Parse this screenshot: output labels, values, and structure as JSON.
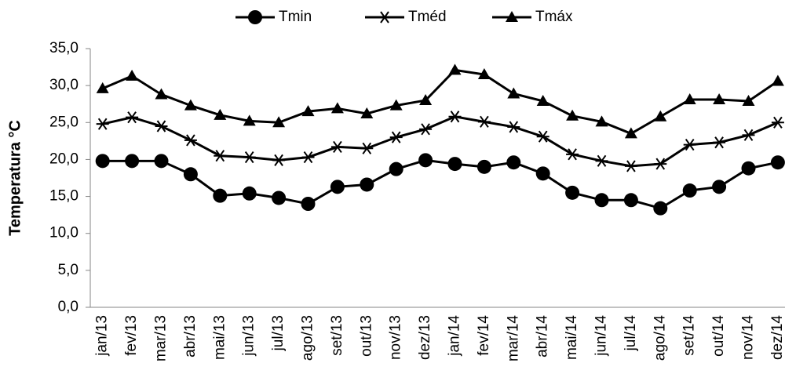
{
  "chart_data": {
    "type": "line",
    "y_label": "Temperatura °C",
    "categories": [
      "jan/13",
      "fev/13",
      "mar/13",
      "abr/13",
      "mai/13",
      "jun/13",
      "jul/13",
      "ago/13",
      "set/13",
      "out/13",
      "nov/13",
      "dez/13",
      "jan/14",
      "fev/14",
      "mar/14",
      "abr/14",
      "mai/14",
      "jun/14",
      "jul/14",
      "ago/14",
      "set/14",
      "out/14",
      "nov/14",
      "dez/14"
    ],
    "series": [
      {
        "name": "Tmin",
        "color": "#000000",
        "marker": "circle",
        "values": [
          19.8,
          19.8,
          19.8,
          18.0,
          15.1,
          15.4,
          14.8,
          14.0,
          16.3,
          16.6,
          18.7,
          19.9,
          19.4,
          19.0,
          19.6,
          18.1,
          15.5,
          14.5,
          14.5,
          13.4,
          15.8,
          16.3,
          18.8,
          19.6
        ]
      },
      {
        "name": "Tméd",
        "color": "#000000",
        "marker": "star",
        "values": [
          24.8,
          25.7,
          24.5,
          22.6,
          20.5,
          20.3,
          19.9,
          20.3,
          21.7,
          21.5,
          23.0,
          24.1,
          25.8,
          25.1,
          24.4,
          23.1,
          20.7,
          19.8,
          19.1,
          19.4,
          22.0,
          22.3,
          23.3,
          25.0
        ]
      },
      {
        "name": "Tmáx",
        "color": "#000000",
        "marker": "triangle",
        "values": [
          29.6,
          31.3,
          28.8,
          27.3,
          26.0,
          25.2,
          25.0,
          26.5,
          26.9,
          26.2,
          27.3,
          28.0,
          32.1,
          31.5,
          28.9,
          27.9,
          25.9,
          25.1,
          23.5,
          25.8,
          28.1,
          28.1,
          27.9,
          30.6
        ]
      }
    ],
    "ylim": [
      0,
      35
    ],
    "yticks": [
      {
        "value": 0,
        "label": "0,0"
      },
      {
        "value": 5,
        "label": "5,0"
      },
      {
        "value": 10,
        "label": "10,0"
      },
      {
        "value": 15,
        "label": "15,0"
      },
      {
        "value": 20,
        "label": "20,0"
      },
      {
        "value": 25,
        "label": "25,0"
      },
      {
        "value": 30,
        "label": "30,0"
      },
      {
        "value": 35,
        "label": "35,0"
      }
    ],
    "legend": "top"
  }
}
